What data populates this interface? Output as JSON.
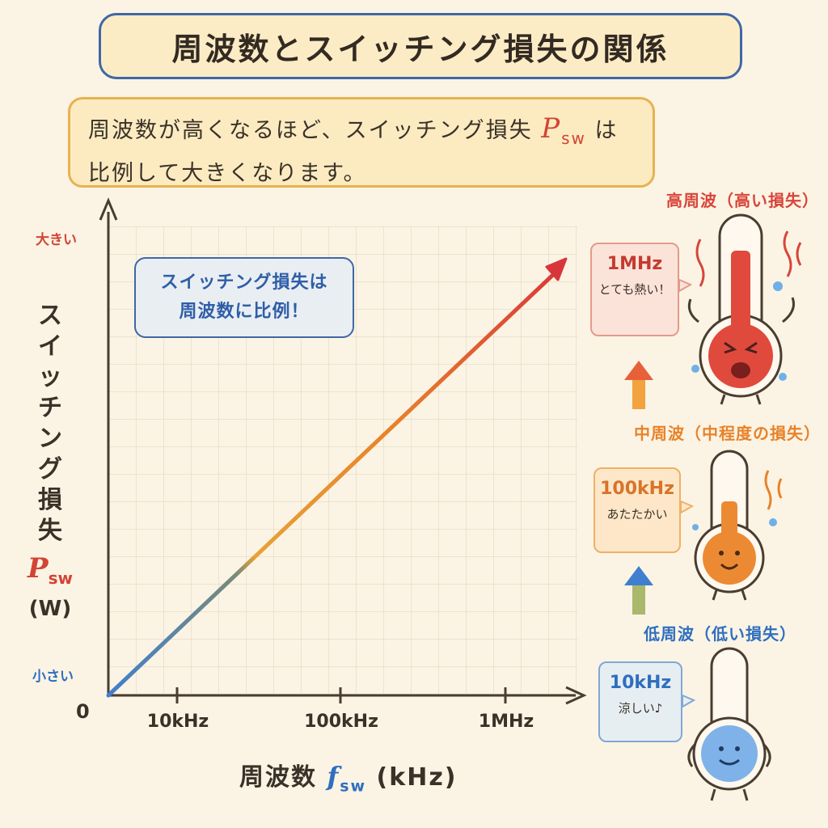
{
  "title": "周波数とスイッチング損失の関係",
  "subtitle": {
    "line1_pre": "周波数が高くなるほど、スイッチング損失",
    "psw_main": "P",
    "psw_sub": "sw",
    "line1_post": "は",
    "line2": "比例して大きくなります。"
  },
  "note": {
    "line1": "スイッチング損失は",
    "line2": "周波数に比例！"
  },
  "y_axis": {
    "high": "大きい",
    "low": "小さい",
    "zero": "0",
    "title_chars": [
      "ス",
      "イ",
      "ッ",
      "チ",
      "ン",
      "グ",
      "損",
      "失"
    ],
    "symbol_main": "P",
    "symbol_sub": "sw",
    "unit": "(W)"
  },
  "x_axis": {
    "ticks": [
      "10kHz",
      "100kHz",
      "1MHz"
    ],
    "title_pre": "周波数",
    "symbol_main": "f",
    "symbol_sub": "sw",
    "unit": "(kHz)"
  },
  "levels": {
    "high": {
      "label": "高周波（高い損失）",
      "freq": "1MHz",
      "message": "とても熱い！",
      "color": "#d8453a"
    },
    "mid": {
      "label": "中周波（中程度の損失）",
      "freq": "100kHz",
      "message": "あたたかい",
      "color": "#e8822a"
    },
    "low": {
      "label": "低周波（低い損失）",
      "freq": "10kHz",
      "message": "涼しい♪",
      "color": "#3f7fcf"
    }
  }
}
